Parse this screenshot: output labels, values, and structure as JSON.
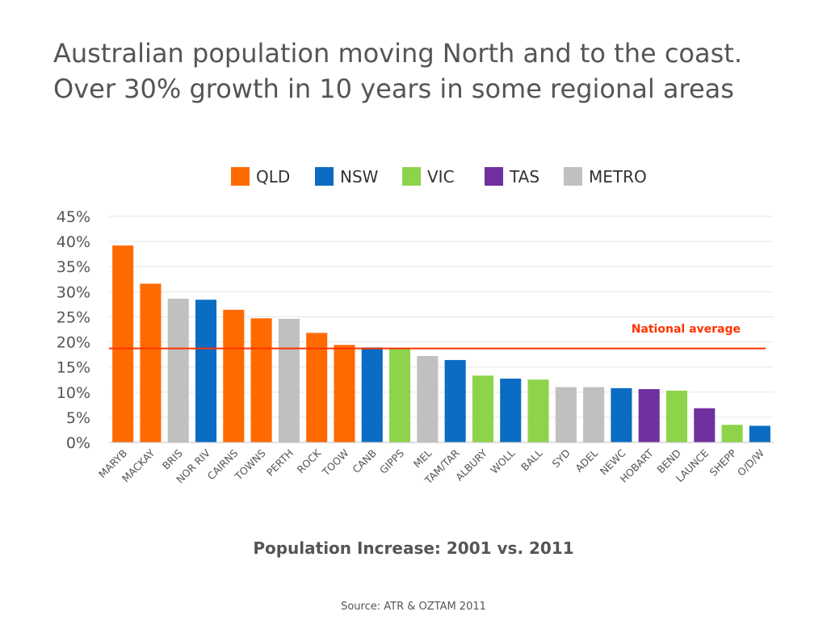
{
  "slide": {
    "title_line1": "Australian population moving North and to the coast.",
    "title_line2": "Over 30% growth in 10 years in some regional areas",
    "source": "Source:  ATR & OZTAM 2011"
  },
  "colors": {
    "QLD": "#ff6a00",
    "NSW": "#0a6cc2",
    "VIC": "#8dd44a",
    "TAS": "#7030a0",
    "METRO": "#c0c0c0",
    "average_line": "#ff3300"
  },
  "chart_data": {
    "type": "bar",
    "title": "",
    "xlabel": "Population Increase: 2001 vs. 2011",
    "ylabel": "",
    "ylim": [
      0,
      45
    ],
    "yticks": [
      0,
      5,
      10,
      15,
      20,
      25,
      30,
      35,
      40,
      45
    ],
    "ytick_format": "percent",
    "grid": true,
    "legend_position": "top",
    "legend": [
      "QLD",
      "NSW",
      "VIC",
      "TAS",
      "METRO"
    ],
    "categories": [
      "MARYB",
      "MACKAY",
      "BRIS",
      "NOR RIV",
      "CAIRNS",
      "TOWNS",
      "PERTH",
      "ROCK",
      "TOOW",
      "CANB",
      "GIPPS",
      "MEL",
      "TAM/TAR",
      "ALBURY",
      "WOLL",
      "BALL",
      "SYD",
      "ADEL",
      "NEWC",
      "HOBART",
      "BEND",
      "LAUNCE",
      "SHEPP",
      "O/D/W"
    ],
    "groups": [
      "QLD",
      "QLD",
      "METRO",
      "NSW",
      "QLD",
      "QLD",
      "METRO",
      "QLD",
      "QLD",
      "NSW",
      "VIC",
      "METRO",
      "NSW",
      "VIC",
      "NSW",
      "VIC",
      "METRO",
      "METRO",
      "NSW",
      "TAS",
      "VIC",
      "TAS",
      "VIC",
      "NSW"
    ],
    "values": [
      39.2,
      31.6,
      28.6,
      28.4,
      26.4,
      24.7,
      24.6,
      21.8,
      19.4,
      18.9,
      18.6,
      17.2,
      16.4,
      13.3,
      12.7,
      12.5,
      11.0,
      11.0,
      10.8,
      10.6,
      10.3,
      6.8,
      3.5,
      3.3
    ],
    "reference_line": {
      "label": "National average",
      "value": 18.7
    }
  }
}
